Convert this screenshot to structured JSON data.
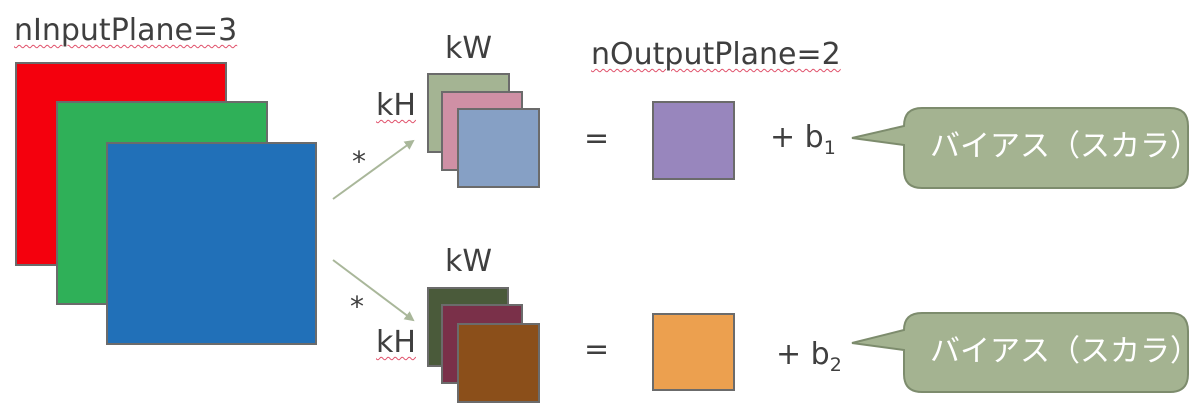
{
  "input": {
    "label": "nInputPlane=3",
    "colors": [
      "#f4000d",
      "#2fb058",
      "#2170b8"
    ]
  },
  "output": {
    "label": "nOutputPlane=2"
  },
  "operators": {
    "conv": "*",
    "equals": "="
  },
  "filters": [
    {
      "kw": "kW",
      "kh": "kH",
      "colors": [
        "#a4b493",
        "#cf90a5",
        "#86a0c5"
      ],
      "output_color": "#9886bd",
      "bias_prefix": "+ b",
      "bias_sub": "1",
      "bubble_text": "バイアス（スカラ）"
    },
    {
      "kw": "kW",
      "kh": "kH",
      "colors": [
        "#4a5a3a",
        "#7a3049",
        "#8b4f1a"
      ],
      "output_color": "#eca04f",
      "bias_prefix": "+ b",
      "bias_sub": "2",
      "bubble_text": "バイアス（スカラ）"
    }
  ],
  "bubble_color": "#a4b391"
}
